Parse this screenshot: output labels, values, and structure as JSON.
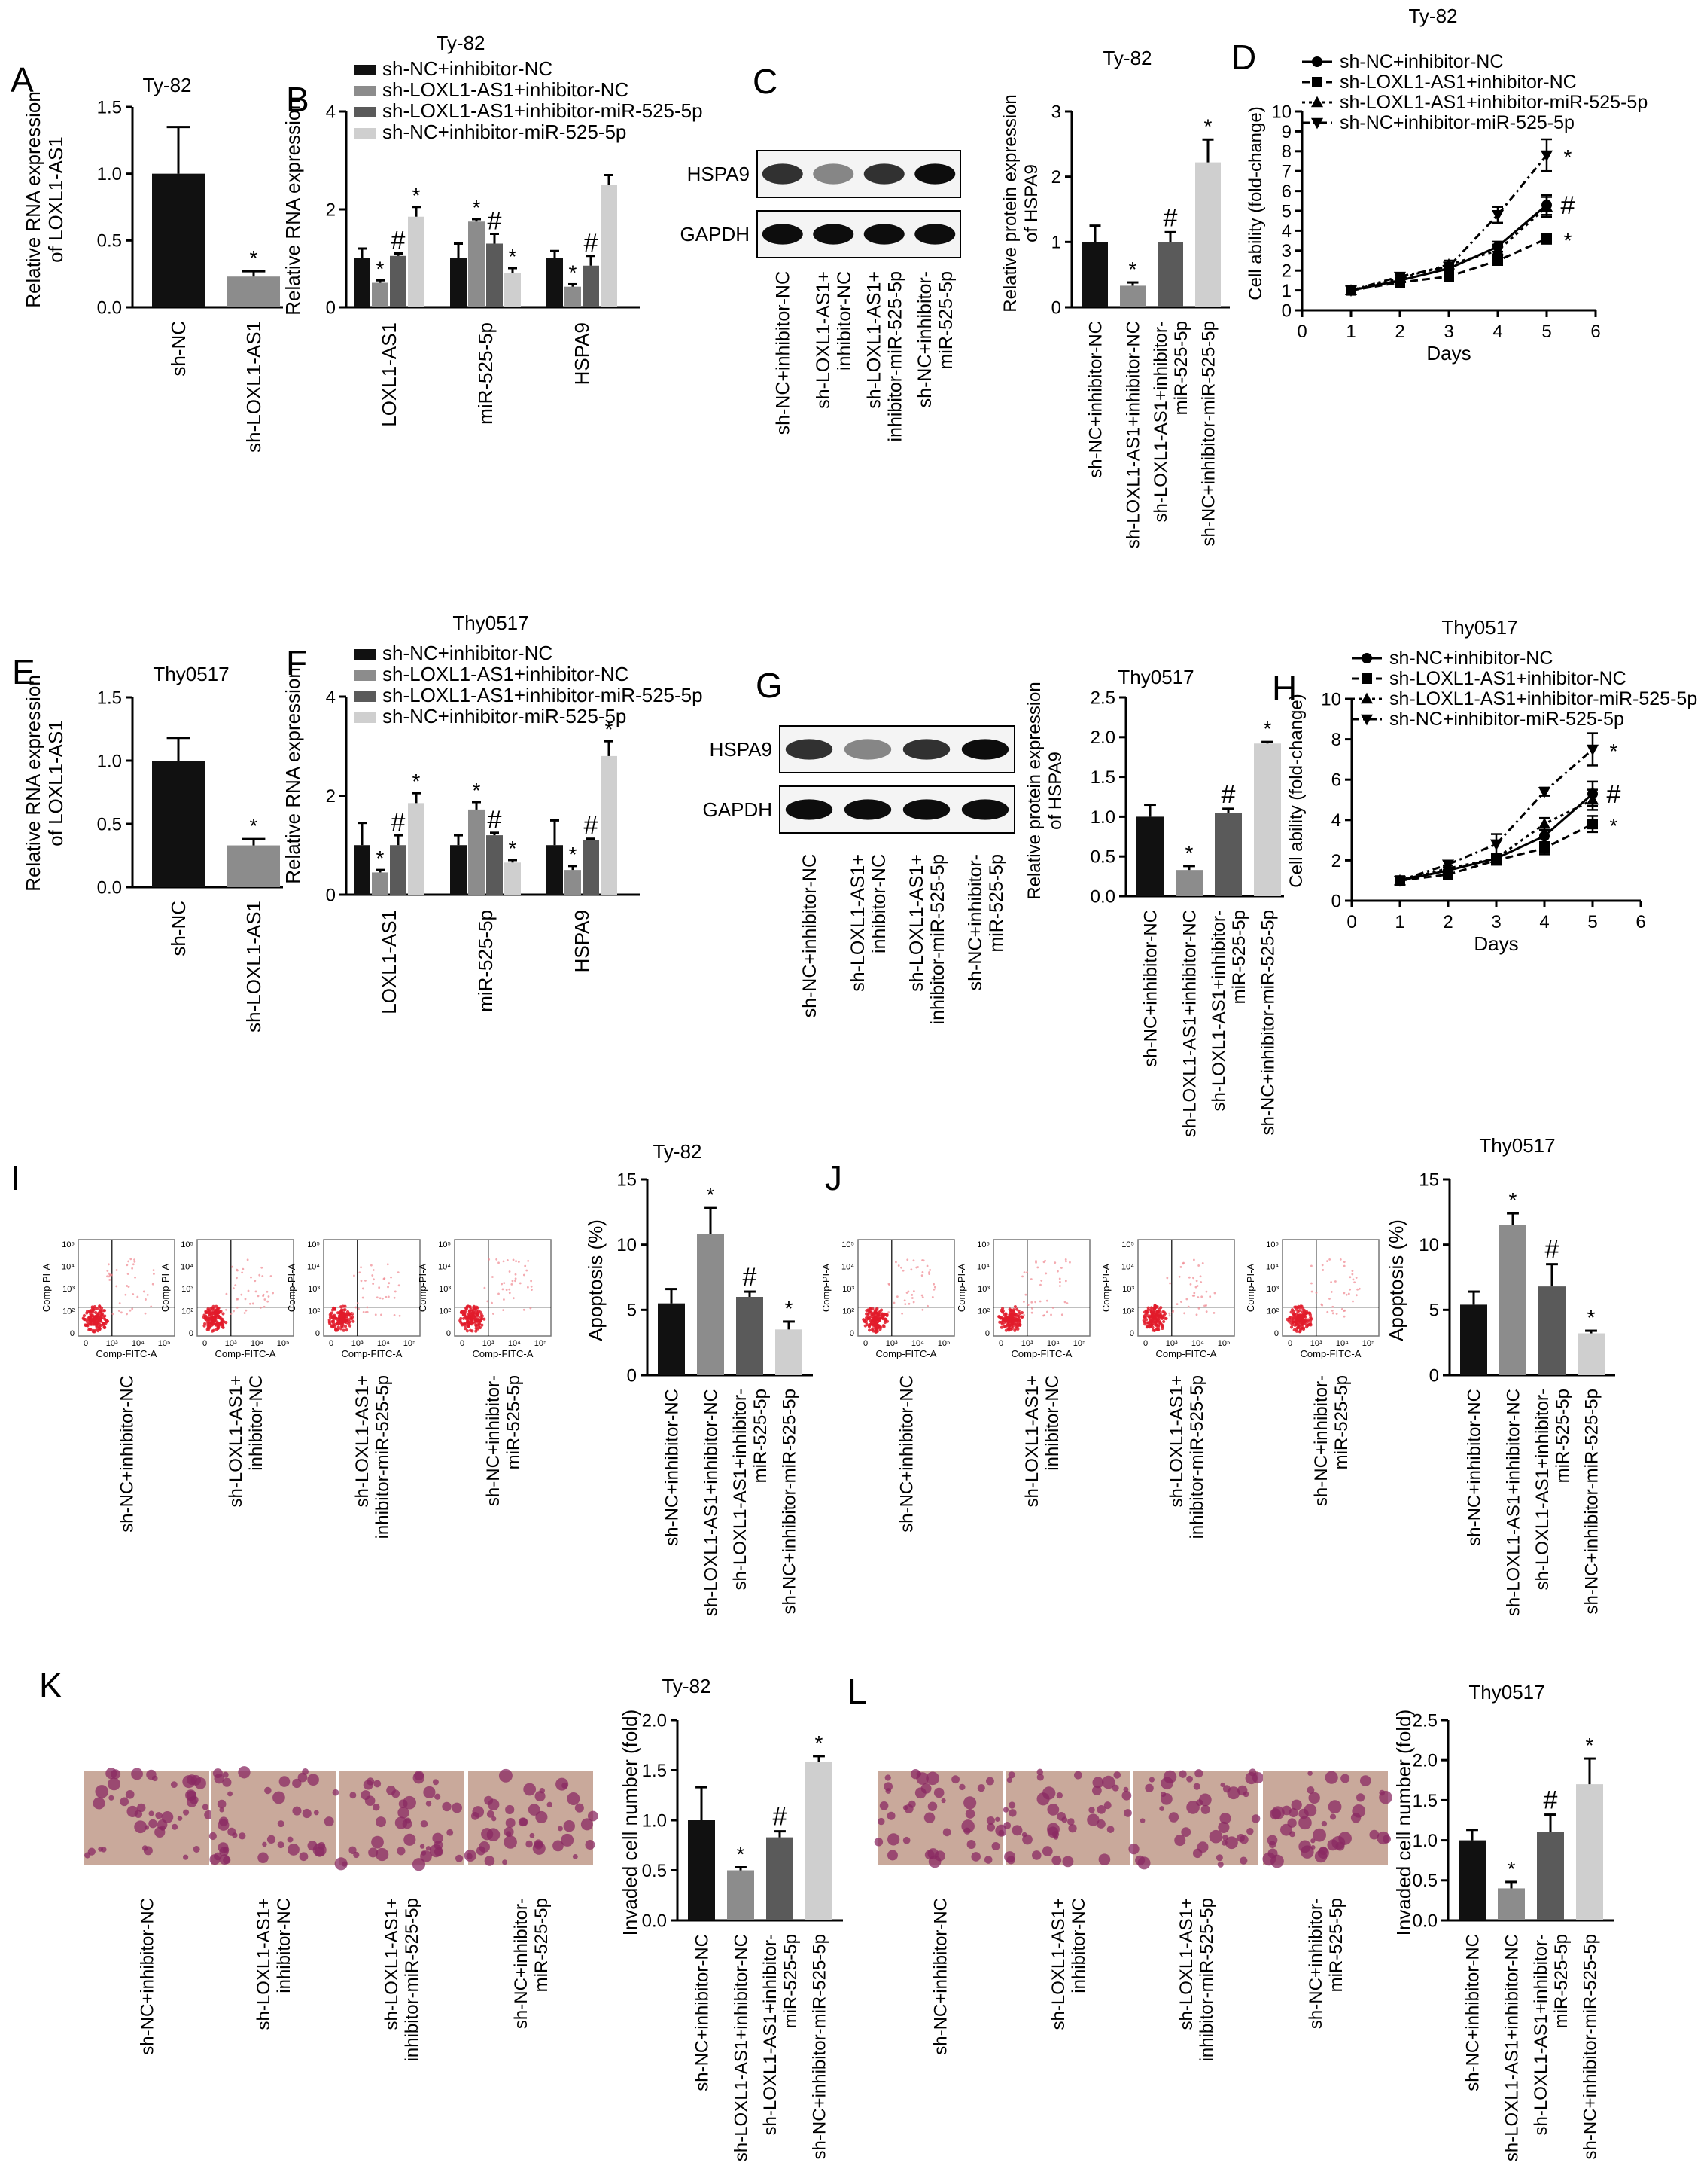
{
  "groups": {
    "two": [
      "sh-NC",
      "sh-LOXL1-AS1"
    ],
    "four": [
      "sh-NC+inhibitor-NC",
      "sh-LOXL1-AS1+inhibitor-NC",
      "sh-LOXL1-AS1+inhibitor-miR-525-5p",
      "sh-NC+inhibitor-miR-525-5p"
    ],
    "four_split": [
      [
        "sh-NC+inhibitor-NC"
      ],
      [
        "sh-LOXL1-AS1+",
        "inhibitor-NC"
      ],
      [
        "sh-LOXL1-AS1+",
        "inhibitor-miR-525-5p"
      ],
      [
        "sh-NC+inhibitor-",
        "miR-525-5p"
      ]
    ],
    "four_short": [
      [
        "sh-NC+inhibitor-NC"
      ],
      [
        "sh-LOXL1-AS1+inhibitor-NC"
      ],
      [
        "sh-LOXL1-AS1+inhibitor-",
        "miR-525-5p"
      ],
      [
        "sh-NC+inhibitor-miR-525-5p"
      ]
    ]
  },
  "genes": [
    "LOXL1-AS1",
    "miR-525-5p",
    "HSPA9"
  ],
  "proteins": [
    "HSPA9",
    "GAPDH"
  ],
  "flow_axes": {
    "x": "Comp-FITC-A",
    "y": "Comp-PI-A",
    "ticks": [
      "0",
      "10³",
      "10⁴",
      "10⁵"
    ],
    "yticks": [
      "10⁵",
      "10⁴",
      "10³",
      "10²",
      "0"
    ]
  },
  "sig": {
    "star": "*",
    "hash": "#"
  },
  "colors": {
    "c0": "#111111",
    "c1": "#8c8c8c",
    "c2": "#5a5a5a",
    "c3": "#cfcfcf"
  },
  "panels": {
    "A": {
      "letter": "A",
      "title": "Ty-82",
      "ylabel": [
        "Relative RNA expression",
        "of LOXL1-AS1"
      ],
      "yticks": [
        "0.0",
        "0.5",
        "1.0",
        "1.5"
      ]
    },
    "B": {
      "letter": "B",
      "title": "Ty-82",
      "ylabel": [
        "Relative RNA expression"
      ],
      "yticks": [
        "0",
        "2",
        "4"
      ]
    },
    "C": {
      "letter": "C",
      "title": "Ty-82",
      "ylabel": [
        "Relative protein expression",
        "of HSPA9"
      ],
      "yticks": [
        "0",
        "1",
        "2",
        "3"
      ]
    },
    "D": {
      "letter": "D",
      "title": "Ty-82",
      "ylabel": [
        "Cell ability (fold-change)"
      ],
      "xlabel": "Days",
      "yticks": [
        "0",
        "1",
        "2",
        "3",
        "4",
        "5",
        "6",
        "7",
        "8",
        "9",
        "10"
      ],
      "xticks": [
        "0",
        "1",
        "2",
        "3",
        "4",
        "5",
        "6"
      ]
    },
    "E": {
      "letter": "E",
      "title": "Thy0517",
      "ylabel": [
        "Relative RNA expression",
        "of LOXL1-AS1"
      ],
      "yticks": [
        "0.0",
        "0.5",
        "1.0",
        "1.5"
      ]
    },
    "F": {
      "letter": "F",
      "title": "Thy0517",
      "ylabel": [
        "Relative RNA expression"
      ],
      "yticks": [
        "0",
        "2",
        "4"
      ]
    },
    "G": {
      "letter": "G",
      "title": "Thy0517",
      "ylabel": [
        "Relative protein expression",
        "of HSPA9"
      ],
      "yticks": [
        "0.0",
        "0.5",
        "1.0",
        "1.5",
        "2.0",
        "2.5"
      ]
    },
    "H": {
      "letter": "H",
      "title": "Thy0517",
      "ylabel": [
        "Cell ability (fold-change)"
      ],
      "xlabel": "Days",
      "yticks": [
        "0",
        "2",
        "4",
        "6",
        "8",
        "10"
      ],
      "xticks": [
        "0",
        "1",
        "2",
        "3",
        "4",
        "5",
        "6"
      ]
    },
    "I": {
      "letter": "I",
      "title": "Ty-82",
      "ylabel": [
        "Apoptosis (%)"
      ],
      "yticks": [
        "0",
        "5",
        "10",
        "15"
      ]
    },
    "J": {
      "letter": "J",
      "title": "Thy0517",
      "ylabel": [
        "Apoptosis (%)"
      ],
      "yticks": [
        "0",
        "5",
        "10",
        "15"
      ]
    },
    "K": {
      "letter": "K",
      "title": "Ty-82",
      "ylabel": [
        "Invaded cell number (fold)"
      ],
      "yticks": [
        "0.0",
        "0.5",
        "1.0",
        "1.5",
        "2.0"
      ]
    },
    "L": {
      "letter": "L",
      "title": "Thy0517",
      "ylabel": [
        "Invaded cell number (fold)"
      ],
      "yticks": [
        "0.0",
        "0.5",
        "1.0",
        "1.5",
        "2.0",
        "2.5"
      ]
    }
  },
  "chart_data": [
    {
      "panel": "A",
      "type": "bar",
      "title": "Ty-82",
      "ylabel": "Relative RNA expression of LOXL1-AS1",
      "categories": [
        "sh-NC",
        "sh-LOXL1-AS1"
      ],
      "values": [
        1.0,
        0.23
      ],
      "errors": [
        0.35,
        0.04
      ],
      "ylim": [
        0,
        1.5
      ],
      "annotations": [
        "",
        "*"
      ]
    },
    {
      "panel": "B",
      "type": "bar",
      "title": "Ty-82",
      "ylabel": "Relative RNA expression",
      "categories": [
        "LOXL1-AS1",
        "miR-525-5p",
        "HSPA9"
      ],
      "ylim": [
        0,
        4
      ],
      "series": [
        {
          "name": "sh-NC+inhibitor-NC",
          "values": [
            1.0,
            1.0,
            1.0
          ],
          "errors": [
            0.2,
            0.3,
            0.15
          ],
          "annotations": [
            "",
            "",
            ""
          ]
        },
        {
          "name": "sh-LOXL1-AS1+inhibitor-NC",
          "values": [
            0.5,
            1.75,
            0.42
          ],
          "errors": [
            0.05,
            0.05,
            0.05
          ],
          "annotations": [
            "*",
            "*",
            "*"
          ]
        },
        {
          "name": "sh-LOXL1-AS1+inhibitor-miR-525-5p",
          "values": [
            1.05,
            1.3,
            0.85
          ],
          "errors": [
            0.05,
            0.2,
            0.2
          ],
          "annotations": [
            "#",
            "#",
            "#"
          ]
        },
        {
          "name": "sh-NC+inhibitor-miR-525-5p",
          "values": [
            1.85,
            0.7,
            2.5
          ],
          "errors": [
            0.2,
            0.1,
            0.2
          ],
          "annotations": [
            "*",
            "*",
            ""
          ]
        }
      ]
    },
    {
      "panel": "C",
      "type": "bar",
      "title": "Ty-82",
      "ylabel": "Relative protein expression of HSPA9",
      "categories": [
        "sh-NC+inhibitor-NC",
        "sh-LOXL1-AS1+inhibitor-NC",
        "sh-LOXL1-AS1+inhibitor-miR-525-5p",
        "sh-NC+inhibitor-miR-525-5p"
      ],
      "values": [
        1.0,
        0.33,
        1.0,
        2.22
      ],
      "errors": [
        0.25,
        0.05,
        0.15,
        0.35
      ],
      "ylim": [
        0,
        3
      ],
      "annotations": [
        "",
        "*",
        "#",
        "*"
      ]
    },
    {
      "panel": "D",
      "type": "line",
      "title": "Ty-82",
      "xlabel": "Days",
      "ylabel": "Cell ability (fold-change)",
      "x": [
        1,
        2,
        3,
        4,
        5
      ],
      "xlim": [
        0,
        6
      ],
      "ylim": [
        0,
        10
      ],
      "series": [
        {
          "name": "sh-NC+inhibitor-NC",
          "values": [
            1.0,
            1.5,
            2.1,
            3.2,
            5.3
          ],
          "errors": [
            0.1,
            0.15,
            0.2,
            0.25,
            0.5
          ],
          "annotation": "#"
        },
        {
          "name": "sh-LOXL1-AS1+inhibitor-NC",
          "values": [
            1.0,
            1.4,
            1.7,
            2.5,
            3.6
          ],
          "errors": [
            0.1,
            0.1,
            0.15,
            0.2,
            0.25
          ],
          "annotation": "*"
        },
        {
          "name": "sh-LOXL1-AS1+inhibitor-miR-525-5p",
          "values": [
            1.0,
            1.6,
            2.3,
            3.0,
            5.2
          ],
          "errors": [
            0.1,
            0.15,
            0.2,
            0.3,
            0.5
          ],
          "annotation": ""
        },
        {
          "name": "sh-NC+inhibitor-miR-525-5p",
          "values": [
            1.0,
            1.7,
            2.2,
            4.8,
            7.8
          ],
          "errors": [
            0.1,
            0.15,
            0.2,
            0.4,
            0.8
          ],
          "annotation": "*"
        }
      ]
    },
    {
      "panel": "E",
      "type": "bar",
      "title": "Thy0517",
      "ylabel": "Relative RNA expression of LOXL1-AS1",
      "categories": [
        "sh-NC",
        "sh-LOXL1-AS1"
      ],
      "values": [
        1.0,
        0.33
      ],
      "errors": [
        0.18,
        0.05
      ],
      "ylim": [
        0,
        1.5
      ],
      "annotations": [
        "",
        "*"
      ]
    },
    {
      "panel": "F",
      "type": "bar",
      "title": "Thy0517",
      "ylabel": "Relative RNA expression",
      "categories": [
        "LOXL1-AS1",
        "miR-525-5p",
        "HSPA9"
      ],
      "ylim": [
        0,
        4
      ],
      "series": [
        {
          "name": "sh-NC+inhibitor-NC",
          "values": [
            1.0,
            1.0,
            1.0
          ],
          "errors": [
            0.45,
            0.2,
            0.5
          ],
          "annotations": [
            "",
            "",
            ""
          ]
        },
        {
          "name": "sh-LOXL1-AS1+inhibitor-NC",
          "values": [
            0.45,
            1.72,
            0.5
          ],
          "errors": [
            0.05,
            0.15,
            0.08
          ],
          "annotations": [
            "*",
            "*",
            "*"
          ]
        },
        {
          "name": "sh-LOXL1-AS1+inhibitor-miR-525-5p",
          "values": [
            1.0,
            1.2,
            1.1
          ],
          "errors": [
            0.2,
            0.05,
            0.03
          ],
          "annotations": [
            "#",
            "#",
            "#"
          ]
        },
        {
          "name": "sh-NC+inhibitor-miR-525-5p",
          "values": [
            1.85,
            0.65,
            2.8
          ],
          "errors": [
            0.2,
            0.05,
            0.3
          ],
          "annotations": [
            "*",
            "*",
            "*"
          ]
        }
      ]
    },
    {
      "panel": "G",
      "type": "bar",
      "title": "Thy0517",
      "ylabel": "Relative protein expression of HSPA9",
      "categories": [
        "sh-NC+inhibitor-NC",
        "sh-LOXL1-AS1+inhibitor-NC",
        "sh-LOXL1-AS1+inhibitor-miR-525-5p",
        "sh-NC+inhibitor-miR-525-5p"
      ],
      "values": [
        1.0,
        0.33,
        1.05,
        1.92
      ],
      "errors": [
        0.15,
        0.05,
        0.05,
        0.02
      ],
      "ylim": [
        0,
        2.5
      ],
      "annotations": [
        "",
        "*",
        "#",
        "*"
      ]
    },
    {
      "panel": "H",
      "type": "line",
      "title": "Thy0517",
      "xlabel": "Days",
      "ylabel": "Cell ability (fold-change)",
      "x": [
        1,
        2,
        3,
        4,
        5
      ],
      "xlim": [
        0,
        6
      ],
      "ylim": [
        0,
        10
      ],
      "series": [
        {
          "name": "sh-NC+inhibitor-NC",
          "values": [
            1.0,
            1.5,
            2.1,
            3.2,
            5.3
          ],
          "errors": [
            0.1,
            0.15,
            0.2,
            0.3,
            0.6
          ],
          "annotation": "#"
        },
        {
          "name": "sh-LOXL1-AS1+inhibitor-NC",
          "values": [
            1.0,
            1.3,
            2.0,
            2.6,
            3.8
          ],
          "errors": [
            0.1,
            0.1,
            0.15,
            0.3,
            0.4
          ],
          "annotation": "*"
        },
        {
          "name": "sh-LOXL1-AS1+inhibitor-miR-525-5p",
          "values": [
            1.0,
            1.6,
            2.1,
            3.8,
            5.0
          ],
          "errors": [
            0.1,
            0.15,
            0.2,
            0.3,
            0.5
          ],
          "annotation": ""
        },
        {
          "name": "sh-NC+inhibitor-miR-525-5p",
          "values": [
            1.0,
            1.8,
            2.8,
            5.4,
            7.5
          ],
          "errors": [
            0.1,
            0.15,
            0.5,
            0.2,
            0.8
          ],
          "annotation": "*"
        }
      ]
    },
    {
      "panel": "I",
      "type": "bar",
      "title": "Ty-82",
      "ylabel": "Apoptosis (%)",
      "categories": [
        "sh-NC+inhibitor-NC",
        "sh-LOXL1-AS1+inhibitor-NC",
        "sh-LOXL1-AS1+inhibitor-miR-525-5p",
        "sh-NC+inhibitor-miR-525-5p"
      ],
      "values": [
        5.5,
        10.8,
        6.0,
        3.5
      ],
      "errors": [
        1.1,
        2.0,
        0.4,
        0.6
      ],
      "ylim": [
        0,
        15
      ],
      "annotations": [
        "",
        "*",
        "#",
        "*"
      ]
    },
    {
      "panel": "J",
      "type": "bar",
      "title": "Thy0517",
      "ylabel": "Apoptosis (%)",
      "categories": [
        "sh-NC+inhibitor-NC",
        "sh-LOXL1-AS1+inhibitor-NC",
        "sh-LOXL1-AS1+inhibitor-miR-525-5p",
        "sh-NC+inhibitor-miR-525-5p"
      ],
      "values": [
        5.4,
        11.5,
        6.8,
        3.2
      ],
      "errors": [
        1.0,
        0.9,
        1.7,
        0.2
      ],
      "ylim": [
        0,
        15
      ],
      "annotations": [
        "",
        "*",
        "#",
        "*"
      ]
    },
    {
      "panel": "K",
      "type": "bar",
      "title": "Ty-82",
      "ylabel": "Invaded cell number (fold)",
      "categories": [
        "sh-NC+inhibitor-NC",
        "sh-LOXL1-AS1+inhibitor-NC",
        "sh-LOXL1-AS1+inhibitor-miR-525-5p",
        "sh-NC+inhibitor-miR-525-5p"
      ],
      "values": [
        1.0,
        0.5,
        0.83,
        1.58
      ],
      "errors": [
        0.33,
        0.03,
        0.06,
        0.06
      ],
      "ylim": [
        0,
        2.0
      ],
      "annotations": [
        "",
        "*",
        "#",
        "*"
      ]
    },
    {
      "panel": "L",
      "type": "bar",
      "title": "Thy0517",
      "ylabel": "Invaded cell number (fold)",
      "categories": [
        "sh-NC+inhibitor-NC",
        "sh-LOXL1-AS1+inhibitor-NC",
        "sh-LOXL1-AS1+inhibitor-miR-525-5p",
        "sh-NC+inhibitor-miR-525-5p"
      ],
      "values": [
        1.0,
        0.4,
        1.1,
        1.7
      ],
      "errors": [
        0.13,
        0.08,
        0.22,
        0.32
      ],
      "ylim": [
        0,
        2.5
      ],
      "annotations": [
        "",
        "*",
        "#",
        "*"
      ]
    }
  ]
}
